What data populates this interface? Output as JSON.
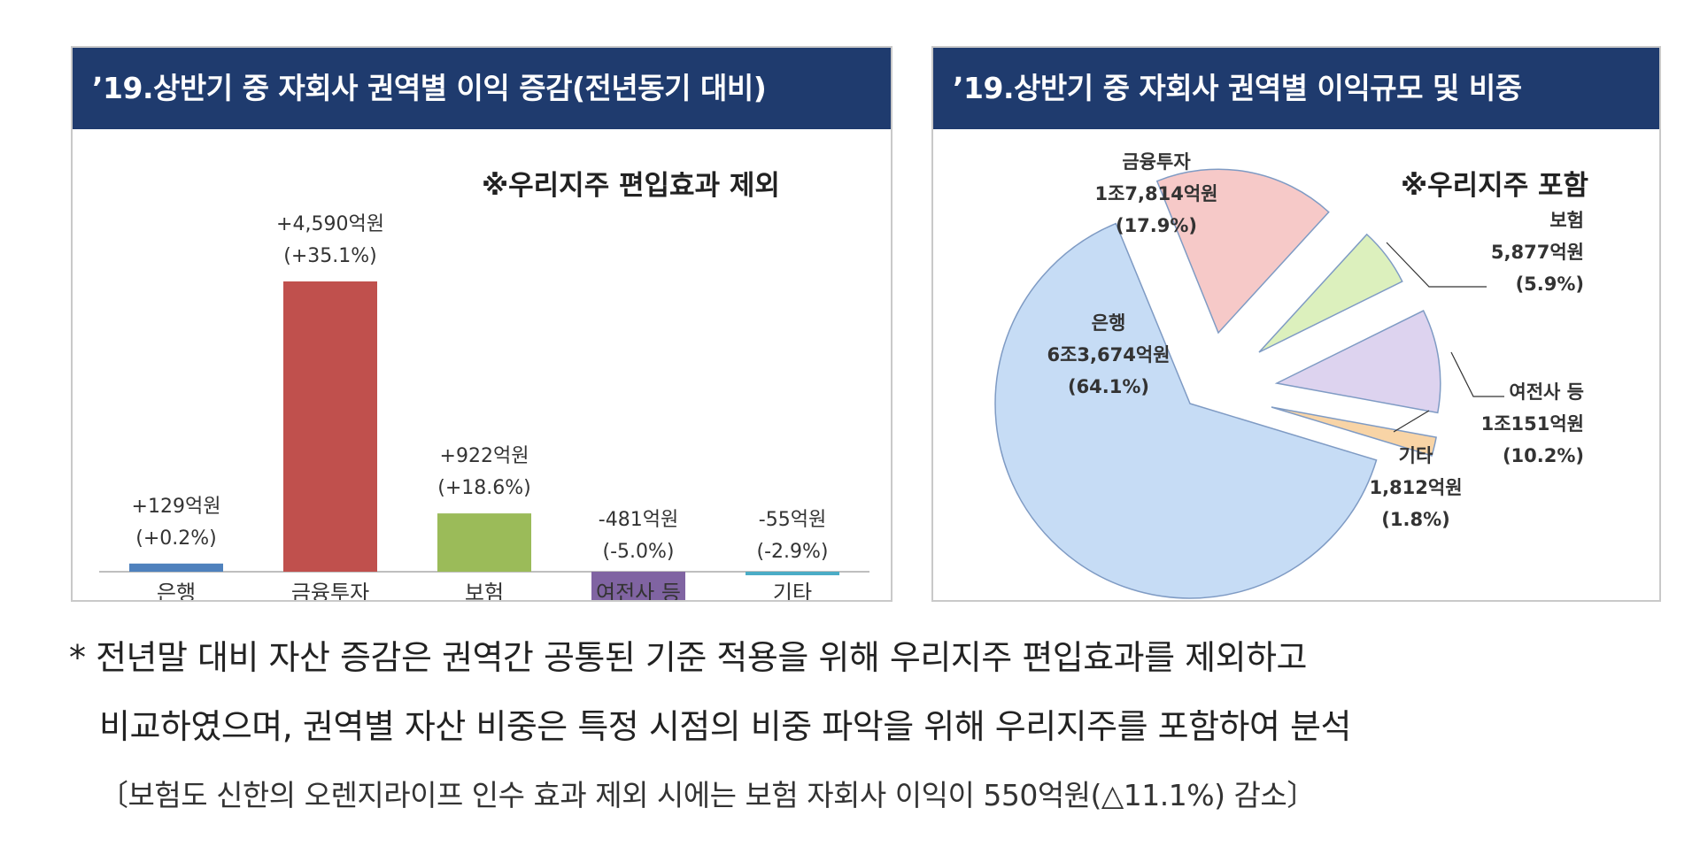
{
  "bar_panel": {
    "title": "’19.상반기 중 자회사 권역별 이익 증감(전년동기 대비)",
    "note": "※우리지주 편입효과 제외"
  },
  "pie_panel": {
    "title": "’19.상반기 중 자회사 권역별 이익규모 및 비중",
    "note": "※우리지주 포함"
  },
  "chart_data": [
    {
      "type": "bar",
      "categories": [
        "은행",
        "금융투자",
        "보험",
        "여전사 등",
        "기타"
      ],
      "values": [
        129,
        4590,
        922,
        -481,
        -55
      ],
      "value_labels": [
        "+129억원",
        "+4,590억원",
        "+922억원",
        "-481억원",
        "-55억원"
      ],
      "pct_labels": [
        "(+0.2%)",
        "(+35.1%)",
        "(+18.6%)",
        "(-5.0%)",
        "(-2.9%)"
      ],
      "colors": [
        "#4f81bd",
        "#c0504d",
        "#9bbb59",
        "#8064a2",
        "#4bacc6"
      ],
      "unit": "억원",
      "ylim": [
        -650,
        5000
      ],
      "grid": false,
      "legend": "none"
    },
    {
      "type": "pie",
      "exploded": true,
      "slices": [
        {
          "name": "은행",
          "amount": "6조3,674억원",
          "percent": 64.1,
          "percent_label": "(64.1%)",
          "color": "#c6dcf5"
        },
        {
          "name": "금융투자",
          "amount": "1조7,814억원",
          "percent": 17.9,
          "percent_label": "(17.9%)",
          "color": "#f6c9c8"
        },
        {
          "name": "보험",
          "amount": "5,877억원",
          "percent": 5.9,
          "percent_label": "(5.9%)",
          "color": "#dcf0bd"
        },
        {
          "name": "여전사 등",
          "amount": "1조151억원",
          "percent": 10.2,
          "percent_label": "(10.2%)",
          "color": "#ddd3ef"
        },
        {
          "name": "기타",
          "amount": "1,812억원",
          "percent": 1.8,
          "percent_label": "(1.8%)",
          "color": "#f8d4a6"
        }
      ]
    }
  ],
  "footnotes": {
    "line1": "* 전년말 대비 자산 증감은 권역간 공통된 기준 적용을 위해 우리지주 편입효과를 제외하고",
    "line2": "비교하였으며, 권역별 자산 비중은 특정 시점의 비중 파악을 위해 우리지주를 포함하여 분석",
    "line3": "〔보험도 신한의 오렌지라이프 인수 효과 제외 시에는 보험 자회사 이익이 550억원(△11.1%) 감소〕"
  }
}
